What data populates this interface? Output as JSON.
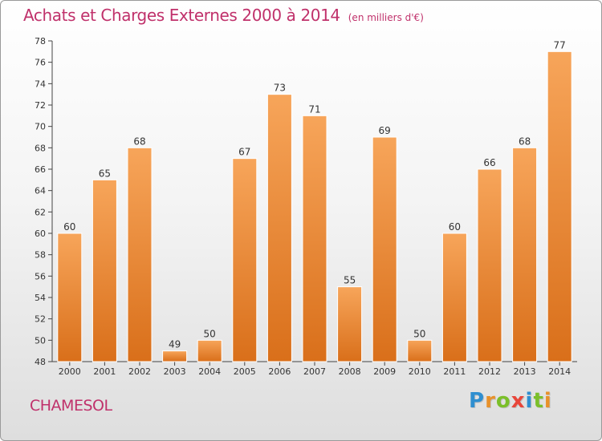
{
  "chart_data": {
    "type": "bar",
    "title": "Achats et Charges Externes 2000 à 2014",
    "subtitle": "(en milliers d'€)",
    "categories": [
      "2000",
      "2001",
      "2002",
      "2003",
      "2004",
      "2005",
      "2006",
      "2007",
      "2008",
      "2009",
      "2010",
      "2011",
      "2012",
      "2013",
      "2014"
    ],
    "values": [
      60,
      65,
      68,
      49,
      50,
      67,
      73,
      71,
      55,
      69,
      50,
      60,
      66,
      68,
      77
    ],
    "ylim": [
      48,
      78
    ],
    "yticks": [
      48,
      50,
      52,
      54,
      56,
      58,
      60,
      62,
      64,
      66,
      68,
      70,
      72,
      74,
      76,
      78
    ],
    "grid": false,
    "bar_color_top": "#f7a55a",
    "bar_color_bottom": "#d96f1a"
  },
  "footer": {
    "commune": "CHAMESOL",
    "brand": {
      "letters": [
        "P",
        "r",
        "o",
        "x",
        "i",
        "t",
        "i"
      ],
      "colors": [
        "#2f8fd0",
        "#e8912a",
        "#7bbf2a",
        "#e8463a",
        "#2f8fd0",
        "#7bbf2a",
        "#e8912a"
      ]
    }
  }
}
